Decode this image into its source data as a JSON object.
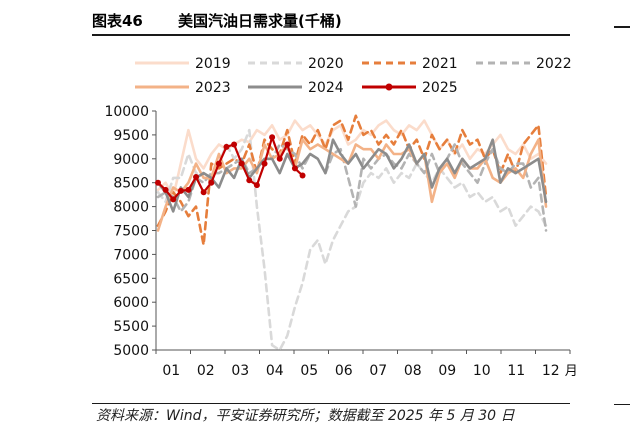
{
  "header": {
    "figure_label": "图表46",
    "title": "美国汽油日需求量(千桶)"
  },
  "source_text": "资料来源：Wind，平安证券研究所；数据截至 2025 年 5 月 30 日",
  "chart_data": {
    "type": "line",
    "title": "美国汽油日需求量(千桶)",
    "xlabel": "",
    "ylabel": "",
    "x_ticks": [
      "01",
      "02",
      "03",
      "04",
      "05",
      "06",
      "07",
      "08",
      "09",
      "10",
      "11",
      "12"
    ],
    "x_unit": "月",
    "ylim": [
      5000,
      10000
    ],
    "y_ticks": [
      5000,
      5500,
      6000,
      6500,
      7000,
      7500,
      8000,
      8500,
      9000,
      9500,
      10000
    ],
    "grid": false,
    "legend_position": "top",
    "series": [
      {
        "name": "2019",
        "color": "#fbdccb",
        "dash": "solid",
        "marker": false,
        "values": [
          8350,
          8500,
          8200,
          8900,
          9600,
          9000,
          8800,
          9100,
          9300,
          9200,
          9300,
          9400,
          9350,
          9600,
          9500,
          9700,
          9400,
          9500,
          9800,
          9600,
          9700,
          9500,
          9300,
          9600,
          9700,
          9300,
          9400,
          9600,
          9500,
          9700,
          9800,
          9600,
          9500,
          9700,
          9600,
          9800,
          9500,
          9200,
          9400,
          9100,
          9300,
          9000,
          9200,
          9100,
          9300,
          9500,
          9200,
          9100,
          9300,
          9000,
          9100,
          8900
        ]
      },
      {
        "name": "2020",
        "color": "#d9d9d9",
        "dash": "dashed",
        "marker": false,
        "values": [
          8300,
          8100,
          8600,
          8600,
          9100,
          8700,
          8700,
          8600,
          8900,
          9300,
          9000,
          9200,
          9600,
          8000,
          6700,
          5100,
          5000,
          5300,
          5900,
          6400,
          7100,
          7300,
          6800,
          7300,
          7600,
          7900,
          8000,
          8500,
          8700,
          8600,
          8800,
          8500,
          8700,
          8600,
          8900,
          8700,
          8500,
          8800,
          8600,
          8400,
          8500,
          8200,
          8300,
          8100,
          8200,
          7900,
          8000,
          7600,
          7800,
          8000,
          7900,
          7600
        ]
      },
      {
        "name": "2021",
        "color": "#e67e3c",
        "dash": "dashed",
        "marker": false,
        "values": [
          7600,
          7900,
          8300,
          8100,
          7800,
          8000,
          7200,
          8900,
          8800,
          8900,
          9000,
          8900,
          9300,
          8700,
          9400,
          9200,
          9100,
          9600,
          8900,
          9500,
          9300,
          9600,
          9200,
          9700,
          9800,
          9400,
          9900,
          9500,
          9600,
          9300,
          9500,
          9300,
          9600,
          9200,
          9400,
          9000,
          9500,
          9200,
          9400,
          9100,
          9600,
          9300,
          9400,
          9000,
          9200,
          8700,
          9100,
          8700,
          9300,
          9500,
          9700,
          8200
        ]
      },
      {
        "name": "2022",
        "color": "#b3b3b3",
        "dash": "dashed",
        "marker": false,
        "values": [
          8200,
          8300,
          8200,
          7900,
          8100,
          8600,
          8500,
          8700,
          8700,
          8800,
          8900,
          9000,
          8700,
          8800,
          9000,
          9000,
          9300,
          9200,
          9100,
          8800,
          9100,
          9000,
          8700,
          9100,
          9200,
          8600,
          8000,
          9000,
          8800,
          9000,
          9100,
          8900,
          8800,
          9100,
          8900,
          8700,
          9100,
          8700,
          9000,
          9300,
          8900,
          8700,
          8500,
          8900,
          9200,
          8800,
          8700,
          8900,
          8900,
          8400,
          8600,
          7500
        ]
      },
      {
        "name": "2023",
        "color": "#f3b287",
        "dash": "solid",
        "marker": false,
        "values": [
          7500,
          8000,
          8400,
          8300,
          8500,
          8900,
          8600,
          8600,
          9100,
          8700,
          8800,
          8800,
          9000,
          8700,
          9300,
          9000,
          9100,
          9300,
          8800,
          9400,
          9200,
          9300,
          9200,
          9100,
          9000,
          8900,
          9300,
          9200,
          9200,
          9000,
          9300,
          9100,
          9100,
          9200,
          8900,
          9100,
          8100,
          8700,
          8900,
          8600,
          9000,
          8800,
          8800,
          9000,
          8600,
          8500,
          8700,
          8800,
          8600,
          9100,
          9400,
          8000
        ]
      },
      {
        "name": "2024",
        "color": "#8c8c8c",
        "dash": "solid",
        "marker": false,
        "values": [
          8500,
          8300,
          7900,
          8400,
          8200,
          8600,
          8700,
          8600,
          8400,
          8800,
          8600,
          9000,
          8600,
          8800,
          9000,
          9000,
          8700,
          9100,
          8800,
          8900,
          9100,
          9000,
          8700,
          9400,
          9100,
          8900,
          9100,
          8800,
          9000,
          9200,
          9100,
          8800,
          9000,
          9300,
          8900,
          9100,
          8400,
          8800,
          9000,
          8700,
          9000,
          8800,
          8900,
          9000,
          9400,
          8500,
          8800,
          8700,
          8800,
          8900,
          9000,
          8100
        ]
      },
      {
        "name": "2025",
        "color": "#c00000",
        "dash": "solid",
        "marker": true,
        "values": [
          8500,
          8350,
          8150,
          8330,
          8350,
          8620,
          8300,
          8500,
          8900,
          9250,
          9300,
          8900,
          8550,
          8450,
          8900,
          9450,
          9000,
          9300,
          8800,
          8650
        ]
      }
    ]
  }
}
